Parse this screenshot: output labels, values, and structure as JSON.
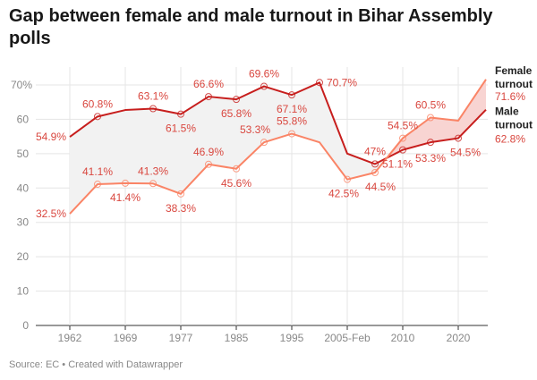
{
  "chart_data": {
    "type": "line",
    "title": "Gap between female and male turnout in Bihar Assembly polls",
    "x_tick_labels": [
      "1962",
      "",
      "1969",
      "",
      "1977",
      "",
      "1985",
      "",
      "1995",
      "",
      "2005-Feb",
      "",
      "2010",
      "",
      "2020",
      ""
    ],
    "ylim": [
      0,
      70
    ],
    "y_ticks": [
      "0",
      "10",
      "20",
      "30",
      "40",
      "50",
      "60",
      "70%"
    ],
    "grid": true,
    "series": [
      {
        "name": "Male turnout",
        "color": "#c71e1d",
        "values": [
          54.9,
          60.8,
          62.7,
          63.1,
          61.5,
          66.6,
          65.8,
          69.6,
          67.1,
          70.7,
          50.0,
          47.0,
          51.1,
          53.3,
          54.5,
          62.8
        ],
        "labels": [
          "54.9%",
          "60.8%",
          null,
          "63.1%",
          "61.5%",
          "66.6%",
          "65.8%",
          "69.6%",
          "67.1%",
          "70.7%",
          null,
          "47%",
          "51.1%",
          "53.3%",
          "54.5%",
          "62.8%"
        ]
      },
      {
        "name": "Female turnout",
        "color": "#fa8466",
        "values": [
          32.5,
          41.1,
          41.4,
          41.3,
          38.3,
          46.9,
          45.6,
          53.3,
          55.8,
          53.3,
          42.5,
          44.5,
          54.5,
          60.5,
          59.6,
          71.6
        ],
        "labels": [
          "32.5%",
          "41.1%",
          "41.4%",
          "41.3%",
          "38.3%",
          "46.9%",
          "45.6%",
          "53.3%",
          "55.8%",
          null,
          "42.5%",
          "44.5%",
          "54.5%",
          "60.5%",
          null,
          "71.6%"
        ]
      }
    ],
    "gap_fill_colors": {
      "male_higher": "#f2f2f2",
      "female_higher": "#f8d4d2"
    },
    "label_color": "#d9473f"
  },
  "footer": "Source: EC • Created with Datawrapper"
}
